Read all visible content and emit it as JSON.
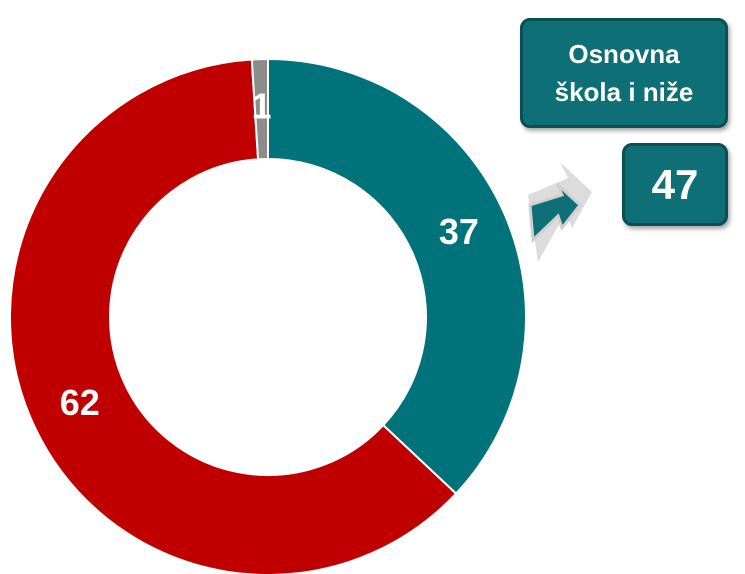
{
  "chart_data": {
    "type": "donut",
    "series": [
      {
        "values": [
          37,
          62,
          1
        ],
        "colors": [
          "#00727a",
          "#c00000",
          "#8c8c8c"
        ]
      }
    ],
    "annotation": {
      "label": "Osnovna škola i niže",
      "value": 47
    }
  }
}
